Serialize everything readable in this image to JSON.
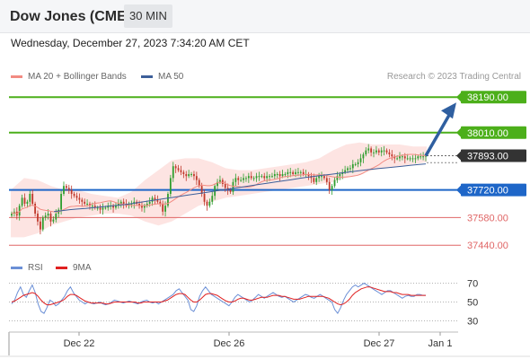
{
  "header": {
    "instrument": "Dow Jones (CME)",
    "timeframe": "30 MIN",
    "datetime": "Wednesday, December 27, 2023 7:34:20 AM CET"
  },
  "legend": {
    "ma20": "MA 20 + Bollinger Bands",
    "ma50": "MA 50",
    "watermark": "Research © 2023 Trading Central"
  },
  "colors": {
    "ma20": "#f28b82",
    "ma50": "#3d5f9a",
    "resistance": "#4caf1a",
    "support": "#1e66c8",
    "lower": "#e06666",
    "current": "#333333",
    "up_candle": "#2e9e2e",
    "down_candle": "#c0392b",
    "bands": "#fde4e2",
    "rsi": "#6b8fd6",
    "rsi_ma": "#e02020",
    "arrow": "#2f5fa0"
  },
  "rsi_legend": {
    "rsi": "RSI",
    "ma": "9MA"
  },
  "chart_data": [
    {
      "type": "candlestick",
      "x_ticks": [
        "Dec 22",
        "Dec 26",
        "Dec 27",
        "Jan 1"
      ],
      "y_range": [
        37400,
        38250
      ],
      "levels": [
        {
          "label": "38190.00",
          "value": 38190,
          "kind": "resistance",
          "style": "box"
        },
        {
          "label": "38010.00",
          "value": 38010,
          "kind": "resistance",
          "style": "box"
        },
        {
          "label": "37893.00",
          "value": 37893,
          "kind": "current",
          "style": "box"
        },
        {
          "label": "37720.00",
          "value": 37720,
          "kind": "support",
          "style": "box"
        },
        {
          "label": "37580.00",
          "value": 37580,
          "kind": "lower",
          "style": "text"
        },
        {
          "label": "37440.00",
          "value": 37440,
          "kind": "lower",
          "style": "text"
        }
      ],
      "close_series": [
        37600,
        37610,
        37590,
        37640,
        37680,
        37650,
        37660,
        37700,
        37650,
        37600,
        37560,
        37520,
        37580,
        37590,
        37600,
        37560,
        37570,
        37600,
        37620,
        37700,
        37740,
        37730,
        37720,
        37700,
        37690,
        37680,
        37670,
        37660,
        37650,
        37650,
        37640,
        37640,
        37630,
        37630,
        37620,
        37630,
        37630,
        37640,
        37640,
        37630,
        37640,
        37650,
        37660,
        37650,
        37640,
        37650,
        37650,
        37660,
        37650,
        37640,
        37630,
        37640,
        37650,
        37660,
        37680,
        37670,
        37660,
        37650,
        37610,
        37640,
        37700,
        37780,
        37840,
        37830,
        37820,
        37810,
        37800,
        37790,
        37800,
        37800,
        37790,
        37770,
        37740,
        37700,
        37660,
        37640,
        37660,
        37690,
        37740,
        37760,
        37770,
        37750,
        37730,
        37720,
        37710,
        37760,
        37780,
        37770,
        37770,
        37780,
        37780,
        37790,
        37780,
        37780,
        37790,
        37790,
        37790,
        37780,
        37790,
        37790,
        37790,
        37800,
        37800,
        37790,
        37800,
        37800,
        37810,
        37810,
        37800,
        37810,
        37810,
        37810,
        37800,
        37800,
        37790,
        37780,
        37760,
        37780,
        37790,
        37790,
        37780,
        37760,
        37720,
        37740,
        37770,
        37790,
        37800,
        37810,
        37820,
        37830,
        37830,
        37850,
        37850,
        37860,
        37880,
        37900,
        37920,
        37930,
        37910,
        37910,
        37920,
        37910,
        37920,
        37920,
        37910,
        37900,
        37890,
        37880,
        37880,
        37890,
        37890,
        37880,
        37880,
        37880,
        37880,
        37880,
        37890,
        37890,
        37890,
        37893
      ],
      "ma50_series": [
        37610,
        37615,
        37620,
        37623,
        37626,
        37630,
        37634,
        37638,
        37642,
        37646,
        37652,
        37658,
        37664,
        37670,
        37676,
        37682,
        37688,
        37694,
        37700,
        37706,
        37712,
        37718,
        37724,
        37730,
        37736,
        37742,
        37748,
        37754,
        37760,
        37766,
        37772,
        37778,
        37784,
        37789,
        37794,
        37799,
        37804,
        37809,
        37814,
        37819,
        37824,
        37828,
        37832,
        37836,
        37840,
        37844,
        37848,
        37852
      ],
      "upper_band": [
        37720,
        37780,
        37770,
        37740,
        37720,
        37720,
        37700,
        37690,
        37680,
        37710,
        37770,
        37820,
        37870,
        37880,
        37880,
        37860,
        37830,
        37820,
        37820,
        37830,
        37840,
        37850,
        37860,
        37880,
        37920,
        37950,
        37960,
        37950,
        37950,
        37950,
        37940,
        37940
      ],
      "lower_band": [
        37480,
        37480,
        37500,
        37540,
        37560,
        37580,
        37590,
        37600,
        37600,
        37590,
        37560,
        37540,
        37560,
        37600,
        37640,
        37660,
        37680,
        37690,
        37700,
        37710,
        37720,
        37730,
        37740,
        37750,
        37760,
        37780,
        37800,
        37820,
        37830,
        37840,
        37850,
        37860
      ],
      "forecast_target": 38190
    },
    {
      "type": "line",
      "name": "RSI",
      "y_ticks": [
        70,
        50,
        30
      ],
      "y_range": [
        20,
        80
      ],
      "rsi": [
        48,
        52,
        60,
        66,
        58,
        55,
        62,
        68,
        60,
        48,
        40,
        38,
        44,
        52,
        50,
        46,
        48,
        52,
        56,
        62,
        66,
        60,
        56,
        52,
        50,
        48,
        50,
        49,
        48,
        49,
        50,
        48,
        47,
        48,
        50,
        52,
        51,
        50,
        49,
        50,
        51,
        50,
        49,
        48,
        50,
        51,
        52,
        50,
        49,
        50,
        48,
        50,
        52,
        54,
        56,
        58,
        62,
        64,
        60,
        56,
        52,
        42,
        40,
        46,
        56,
        62,
        66,
        62,
        58,
        56,
        54,
        52,
        50,
        48,
        46,
        50,
        55,
        58,
        56,
        54,
        52,
        50,
        52,
        55,
        58,
        56,
        54,
        56,
        58,
        60,
        58,
        56,
        55,
        56,
        54,
        52,
        50,
        52,
        54,
        56,
        58,
        57,
        55,
        54,
        56,
        58,
        56,
        54,
        52,
        50,
        42,
        38,
        44,
        52,
        58,
        62,
        66,
        68,
        66,
        68,
        70,
        68,
        66,
        64,
        62,
        60,
        58,
        60,
        62,
        62,
        60,
        58,
        56,
        54,
        56,
        57,
        56,
        56,
        58,
        58,
        57,
        57
      ],
      "ma9": [
        50,
        51,
        53,
        55,
        57,
        58,
        59,
        60,
        59,
        56,
        52,
        49,
        47,
        47,
        48,
        49,
        50,
        51,
        53,
        56,
        58,
        58,
        57,
        55,
        53,
        51,
        50,
        49,
        49,
        49,
        49,
        49,
        48,
        48,
        49,
        50,
        50,
        50,
        50,
        50,
        50,
        50,
        50,
        49,
        49,
        50,
        50,
        50,
        50,
        50,
        50,
        50,
        51,
        52,
        54,
        56,
        58,
        59,
        59,
        58,
        55,
        52,
        50,
        50,
        52,
        55,
        58,
        59,
        59,
        58,
        57,
        55,
        53,
        51,
        50,
        50,
        51,
        53,
        54,
        54,
        53,
        52,
        52,
        53,
        54,
        55,
        55,
        55,
        56,
        57,
        57,
        57,
        56,
        56,
        55,
        54,
        53,
        53,
        53,
        54,
        55,
        56,
        56,
        56,
        56,
        56,
        56,
        55,
        54,
        52,
        50,
        48,
        47,
        48,
        50,
        53,
        57,
        60,
        62,
        64,
        65,
        66,
        66,
        65,
        64,
        63,
        62,
        61,
        61,
        61,
        60,
        60,
        59,
        58,
        58,
        58,
        57,
        57,
        57,
        57,
        57,
        57
      ]
    }
  ]
}
